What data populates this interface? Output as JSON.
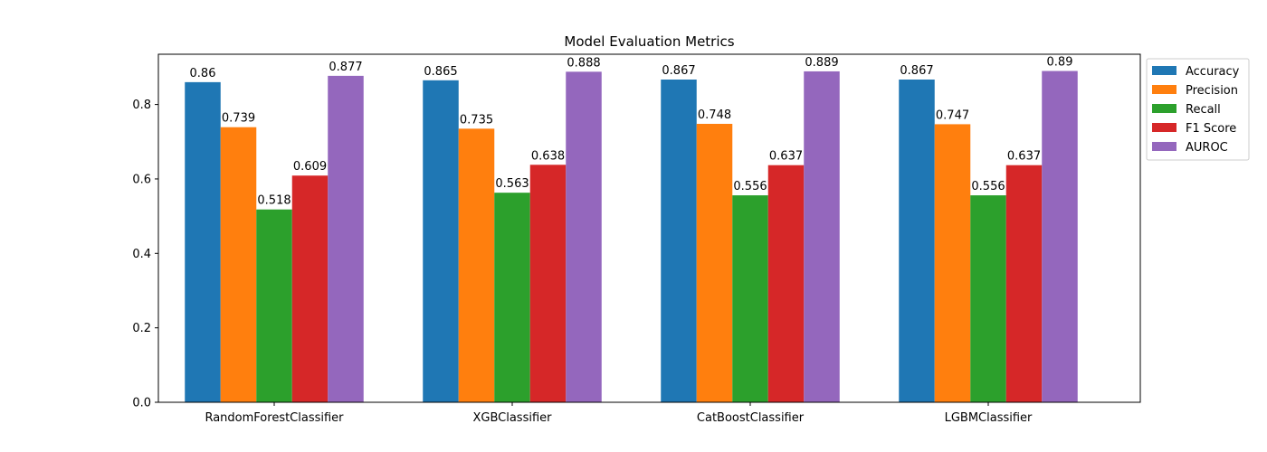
{
  "chart_data": {
    "type": "bar",
    "title": "Model Evaluation Metrics",
    "xlabel": "",
    "ylabel": "",
    "categories": [
      "RandomForestClassifier",
      "XGBClassifier",
      "CatBoostClassifier",
      "LGBMClassifier"
    ],
    "series": [
      {
        "name": "Accuracy",
        "color": "#1f77b4",
        "values": [
          0.86,
          0.865,
          0.867,
          0.867
        ]
      },
      {
        "name": "Precision",
        "color": "#ff7f0e",
        "values": [
          0.739,
          0.735,
          0.748,
          0.747
        ]
      },
      {
        "name": "Recall",
        "color": "#2ca02c",
        "values": [
          0.518,
          0.563,
          0.556,
          0.556
        ]
      },
      {
        "name": "F1 Score",
        "color": "#d62728",
        "values": [
          0.609,
          0.638,
          0.637,
          0.637
        ]
      },
      {
        "name": "AUROC",
        "color": "#9467bd",
        "values": [
          0.877,
          0.888,
          0.889,
          0.89
        ]
      }
    ],
    "bar_labels": [
      [
        "0.86",
        "0.865",
        "0.867",
        "0.867"
      ],
      [
        "0.739",
        "0.735",
        "0.748",
        "0.747"
      ],
      [
        "0.518",
        "0.563",
        "0.556",
        "0.556"
      ],
      [
        "0.609",
        "0.638",
        "0.637",
        "0.637"
      ],
      [
        "0.877",
        "0.888",
        "0.889",
        "0.89"
      ]
    ],
    "ylim": [
      0,
      0.935
    ],
    "yticks": [
      0.0,
      0.2,
      0.4,
      0.6,
      0.8
    ],
    "ytick_labels": [
      "0.0",
      "0.2",
      "0.4",
      "0.6",
      "0.8"
    ],
    "grid": false,
    "legend_position": "outside-top-right"
  }
}
